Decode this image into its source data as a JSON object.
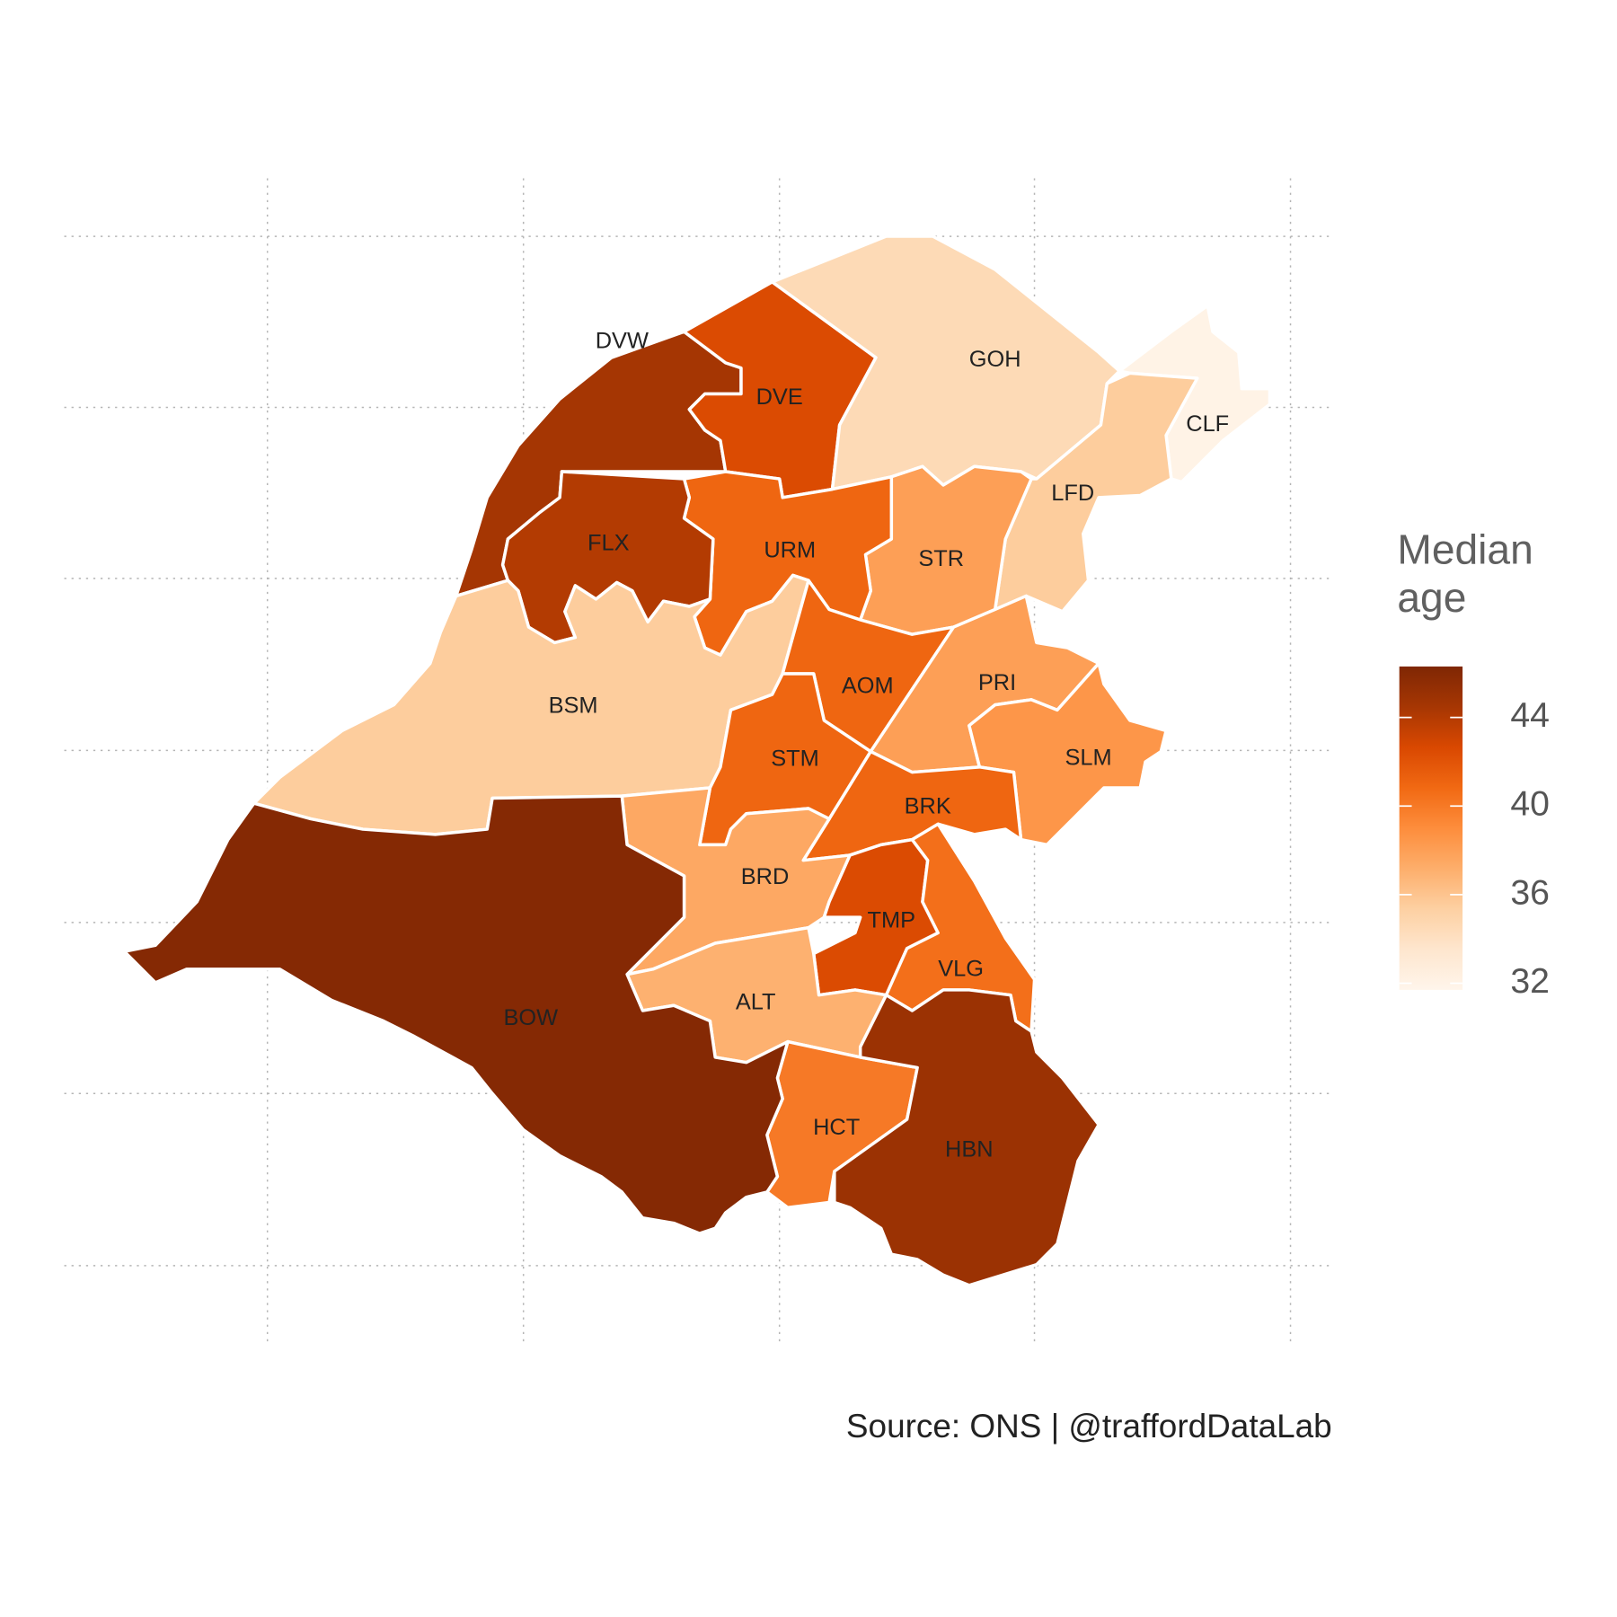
{
  "chart_data": {
    "type": "choropleth",
    "legend_title": "Median age",
    "caption": "Source: ONS  |  @traffordDataLab",
    "colors": [
      "#fff5eb",
      "#fee6ce",
      "#fdd0a2",
      "#fdae6b",
      "#fd8d3c",
      "#f16913",
      "#d94801",
      "#a63603",
      "#7f2704"
    ],
    "lim": [
      31.7,
      46.3
    ],
    "ticks": [
      32,
      36,
      40,
      44
    ],
    "regions": [
      {
        "name": "DVW",
        "value": 44.5
      },
      {
        "name": "DVE",
        "value": 42.5
      },
      {
        "name": "GOH",
        "value": 34.5
      },
      {
        "name": "CLF",
        "value": 32
      },
      {
        "name": "LFD",
        "value": 35.5
      },
      {
        "name": "STR",
        "value": 38
      },
      {
        "name": "URM",
        "value": 41
      },
      {
        "name": "FLX",
        "value": 44
      },
      {
        "name": "BSM",
        "value": 35.5
      },
      {
        "name": "AOM",
        "value": 41
      },
      {
        "name": "PRI",
        "value": 38
      },
      {
        "name": "SLM",
        "value": 38.5
      },
      {
        "name": "STM",
        "value": 41
      },
      {
        "name": "BRK",
        "value": 41
      },
      {
        "name": "BRD",
        "value": 37.5
      },
      {
        "name": "TMP",
        "value": 42.5
      },
      {
        "name": "VLG",
        "value": 40.5
      },
      {
        "name": "ALT",
        "value": 37
      },
      {
        "name": "HCT",
        "value": 40
      },
      {
        "name": "HBN",
        "value": 45
      },
      {
        "name": "BOW",
        "value": 46
      }
    ]
  }
}
